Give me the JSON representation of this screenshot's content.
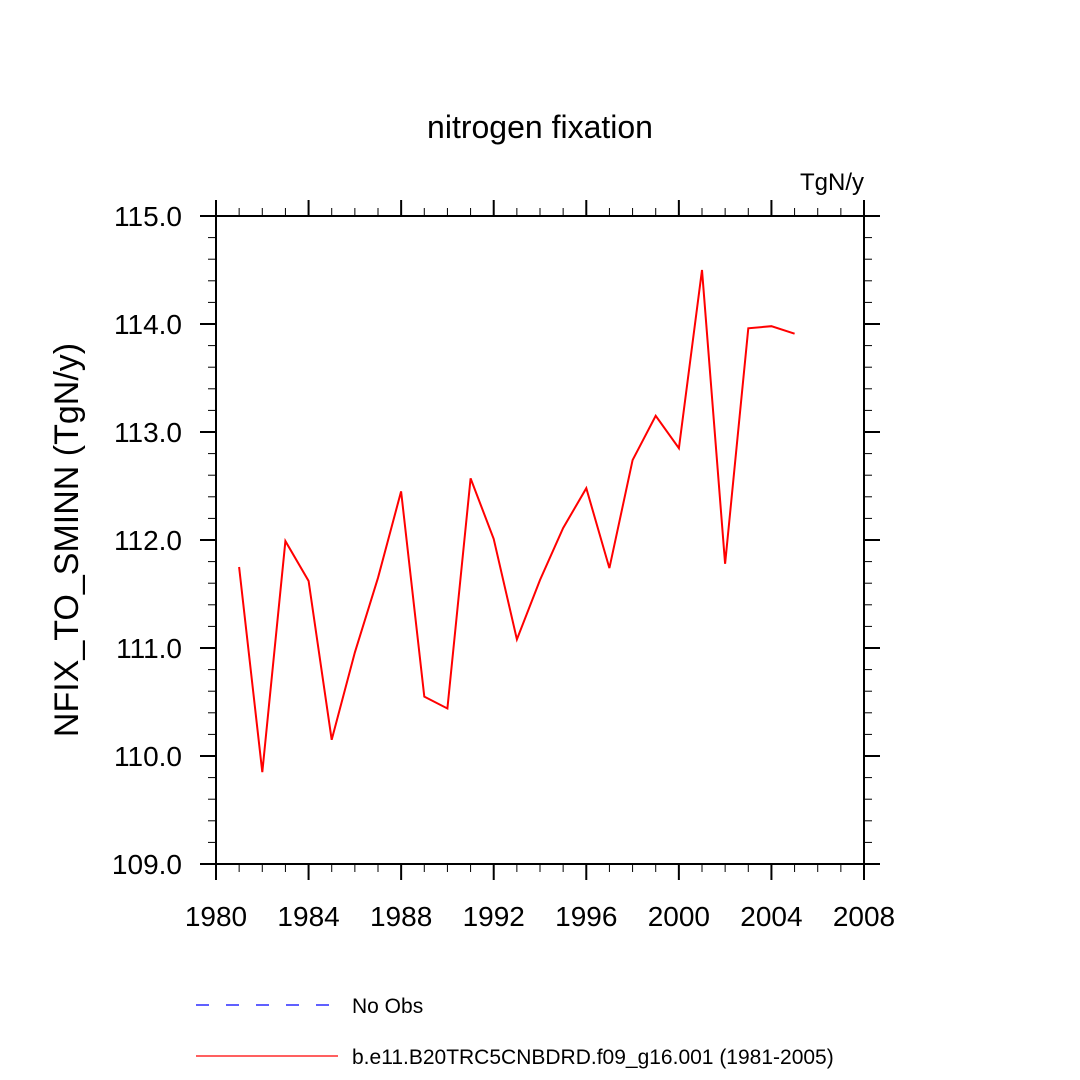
{
  "chart_data": {
    "type": "line",
    "title": "nitrogen fixation",
    "units_label": "TgN/y",
    "ylabel": "NFIX_TO_SMINN  (TgN/y)",
    "xlabel": "",
    "xlim": [
      1980,
      2008
    ],
    "ylim": [
      109.0,
      115.0
    ],
    "x_ticks": [
      1980,
      1984,
      1988,
      1992,
      1996,
      2000,
      2004,
      2008
    ],
    "x_tick_labels": [
      "1980",
      "1984",
      "1988",
      "1992",
      "1996",
      "2000",
      "2004",
      "2008"
    ],
    "y_ticks": [
      109.0,
      110.0,
      111.0,
      112.0,
      113.0,
      114.0,
      115.0
    ],
    "y_tick_labels": [
      "109.0",
      "110.0",
      "111.0",
      "112.0",
      "113.0",
      "114.0",
      "115.0"
    ],
    "grid": false,
    "legend_position": "bottom",
    "series": [
      {
        "name": "b.e11.B20TRC5CNBDRD.f09_g16.001 (1981-2005)",
        "color": "#ff0000",
        "dash": "solid",
        "x": [
          1981,
          1982,
          1983,
          1984,
          1985,
          1986,
          1987,
          1988,
          1989,
          1990,
          1991,
          1992,
          1993,
          1994,
          1995,
          1996,
          1997,
          1998,
          1999,
          2000,
          2001,
          2002,
          2003,
          2004,
          2005
        ],
        "y": [
          111.75,
          109.85,
          111.99,
          111.62,
          110.15,
          110.96,
          111.65,
          112.45,
          110.55,
          110.44,
          112.57,
          112.01,
          111.08,
          111.63,
          112.11,
          112.48,
          111.74,
          112.74,
          113.15,
          112.85,
          114.5,
          111.78,
          113.96,
          113.98,
          113.91
        ]
      }
    ],
    "legend_entries": [
      {
        "label": "No Obs",
        "color": "#0000ff",
        "dash": "dashed"
      },
      {
        "label": "b.e11.B20TRC5CNBDRD.f09_g16.001 (1981-2005)",
        "color": "#ff0000",
        "dash": "solid"
      }
    ]
  }
}
